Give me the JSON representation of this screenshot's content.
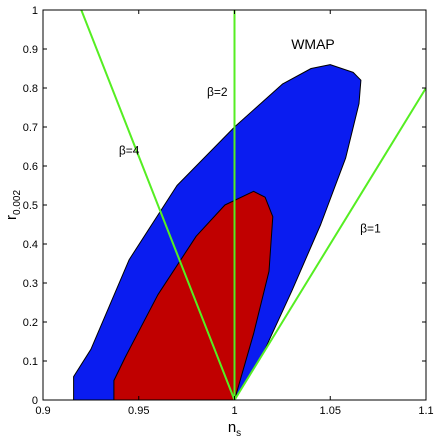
{
  "chart_data": {
    "type": "area",
    "title": "",
    "xlabel": "n",
    "xlabel_sub": "s",
    "ylabel": "r",
    "ylabel_sub": "0.002",
    "xlim": [
      0.9,
      1.1
    ],
    "ylim": [
      0,
      1
    ],
    "grid": false,
    "x_ticks": [
      0.9,
      0.95,
      1,
      1.05,
      1.1
    ],
    "x_tick_labels": [
      "0.9",
      "0.95",
      "1",
      "1.05",
      "1.1"
    ],
    "y_ticks": [
      0,
      0.1,
      0.2,
      0.3,
      0.4,
      0.5,
      0.6,
      0.7,
      0.8,
      0.9,
      1
    ],
    "y_tick_labels": [
      "0",
      "0.1",
      "0.2",
      "0.3",
      "0.4",
      "0.5",
      "0.6",
      "0.7",
      "0.8",
      "0.9",
      "1"
    ],
    "series": [
      {
        "kind": "contour",
        "color": "#0a1cf0",
        "points": [
          [
            0.916,
            0.0
          ],
          [
            1.0,
            0.0
          ],
          [
            1.015,
            0.12
          ],
          [
            1.03,
            0.28
          ],
          [
            1.045,
            0.45
          ],
          [
            1.058,
            0.62
          ],
          [
            1.065,
            0.76
          ],
          [
            1.066,
            0.82
          ],
          [
            1.062,
            0.84
          ],
          [
            1.05,
            0.86
          ],
          [
            1.04,
            0.85
          ],
          [
            1.025,
            0.81
          ],
          [
            1.0,
            0.7
          ],
          [
            0.97,
            0.55
          ],
          [
            0.945,
            0.36
          ],
          [
            0.925,
            0.13
          ],
          [
            0.916,
            0.06
          ]
        ]
      },
      {
        "kind": "contour",
        "color": "#c00000",
        "points": [
          [
            0.937,
            0.0
          ],
          [
            1.0,
            0.0
          ],
          [
            1.01,
            0.17
          ],
          [
            1.018,
            0.33
          ],
          [
            1.02,
            0.47
          ],
          [
            1.016,
            0.52
          ],
          [
            1.01,
            0.535
          ],
          [
            0.995,
            0.5
          ],
          [
            0.98,
            0.42
          ],
          [
            0.96,
            0.27
          ],
          [
            0.943,
            0.11
          ],
          [
            0.937,
            0.05
          ]
        ]
      },
      {
        "kind": "line",
        "color": "#55ee22",
        "points": [
          [
            0.92,
            1.0
          ],
          [
            1.0,
            0.0
          ]
        ]
      },
      {
        "kind": "line",
        "color": "#55ee22",
        "points": [
          [
            1.0,
            1.0
          ],
          [
            1.0,
            0.0
          ]
        ]
      },
      {
        "kind": "line",
        "color": "#55ee22",
        "points": [
          [
            1.0,
            0.0
          ],
          [
            1.1,
            0.8
          ]
        ]
      }
    ],
    "annotations": [
      {
        "text": "WMAP",
        "x": 1.041,
        "y": 0.91
      },
      {
        "text": "β=2",
        "x": 0.991,
        "y": 0.79
      },
      {
        "text": "β=4",
        "x": 0.945,
        "y": 0.64
      },
      {
        "text": "β=1",
        "x": 1.071,
        "y": 0.44
      }
    ]
  }
}
